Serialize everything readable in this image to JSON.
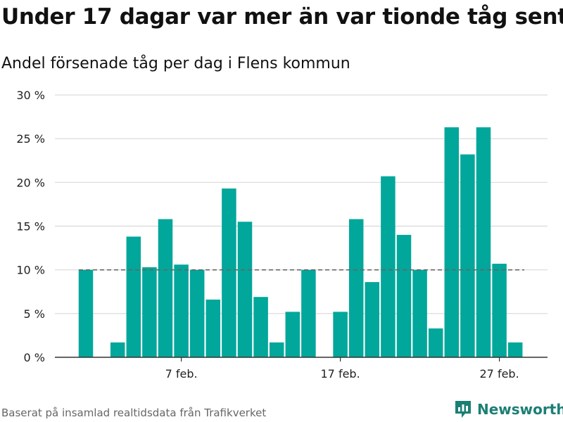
{
  "title": "Under 17 dagar var mer än var tionde tåg sent",
  "subtitle": "Andel försenade tåg per dag i Flens kommun",
  "source": "Baserat på insamlad realtidsdata från Trafikverket",
  "brand": "Newsworthy",
  "colors": {
    "bar": "#00a79a",
    "brand": "#1b7f74",
    "reference_line": "#666666",
    "grid": "#d9d9d9"
  },
  "chart_data": {
    "type": "bar",
    "unit": "%",
    "ylim": [
      0,
      30
    ],
    "yticks": [
      0,
      5,
      10,
      15,
      20,
      25,
      30
    ],
    "ytick_labels": [
      "0 %",
      "5 %",
      "10 %",
      "15 %",
      "20 %",
      "25 %",
      "30 %"
    ],
    "xtick_labels": [
      {
        "label": "7 feb.",
        "day": 7
      },
      {
        "label": "17 feb.",
        "day": 17
      },
      {
        "label": "27 feb.",
        "day": 27
      }
    ],
    "grid": true,
    "reference_line": 10,
    "days": [
      1,
      2,
      3,
      4,
      5,
      6,
      7,
      8,
      9,
      10,
      11,
      12,
      13,
      14,
      15,
      16,
      17,
      18,
      19,
      20,
      21,
      22,
      23,
      24,
      25,
      26,
      27,
      28
    ],
    "values": [
      10.0,
      0.0,
      1.7,
      13.8,
      10.3,
      15.8,
      10.6,
      10.0,
      6.6,
      19.3,
      15.5,
      6.9,
      1.7,
      5.2,
      10.0,
      0.0,
      5.2,
      15.8,
      8.6,
      20.7,
      14.0,
      10.0,
      3.3,
      26.3,
      23.2,
      26.3,
      10.7,
      1.7
    ]
  }
}
